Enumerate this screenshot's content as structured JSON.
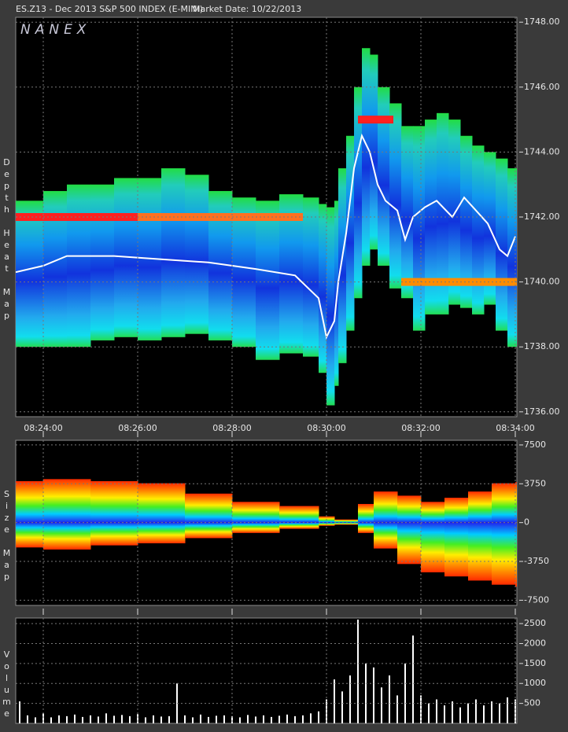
{
  "chart_data": [
    {
      "type": "depth",
      "title": "ES.Z13 - Dec 2013 S&P 500 INDEX (E-MINI)",
      "subtitle": "Market Date: 10/22/2013",
      "watermark": "NANEX",
      "ylabel": "Depth Heat Map",
      "xlim": [
        "08:23:25",
        "08:34:02"
      ],
      "xticks": [
        "08:24:00",
        "08:26:00",
        "08:28:00",
        "08:30:00",
        "08:32:00",
        "08:34:00"
      ],
      "ylim": [
        1735.85,
        1748.15
      ],
      "yticks": [
        {
          "value": 1736,
          "label": "1736.00"
        },
        {
          "value": 1738,
          "label": "1738.00"
        },
        {
          "value": 1740,
          "label": "1740.00"
        },
        {
          "value": 1742,
          "label": "1742.00"
        },
        {
          "value": 1744,
          "label": "1744.00"
        },
        {
          "value": 1746,
          "label": "1746.00"
        },
        {
          "value": 1748,
          "label": "1748.00"
        }
      ],
      "grid": true,
      "depth": {
        "x": [
          "08:23:25",
          "08:24:00",
          "08:24:30",
          "08:25:00",
          "08:25:30",
          "08:26:00",
          "08:26:30",
          "08:27:00",
          "08:27:30",
          "08:28:00",
          "08:28:30",
          "08:29:00",
          "08:29:30",
          "08:29:50",
          "08:30:00",
          "08:30:10",
          "08:30:15",
          "08:30:25",
          "08:30:35",
          "08:30:45",
          "08:30:55",
          "08:31:05",
          "08:31:20",
          "08:31:35",
          "08:31:50",
          "08:32:05",
          "08:32:20",
          "08:32:35",
          "08:32:50",
          "08:33:05",
          "08:33:20",
          "08:33:35",
          "08:33:50"
        ],
        "low": [
          1738,
          1738,
          1738,
          1738.2,
          1738.3,
          1738.2,
          1738.3,
          1738.4,
          1738.2,
          1738,
          1737.6,
          1737.8,
          1737.7,
          1737.2,
          1736.2,
          1736.8,
          1737.5,
          1738.5,
          1739.5,
          1740.5,
          1741,
          1740.5,
          1739.8,
          1739.5,
          1738.5,
          1739,
          1739,
          1739.3,
          1739.2,
          1739,
          1739.3,
          1738.5,
          1738
        ],
        "high": [
          1742.5,
          1742.8,
          1743,
          1743,
          1743.2,
          1743.2,
          1743.5,
          1743.3,
          1742.8,
          1742.6,
          1742.5,
          1742.7,
          1742.6,
          1742.4,
          1742.3,
          1742.5,
          1743.5,
          1744.5,
          1746,
          1747.2,
          1747,
          1746,
          1745.5,
          1744.8,
          1744.8,
          1745,
          1745.2,
          1745,
          1744.5,
          1744.2,
          1744,
          1743.8,
          1743.5
        ]
      },
      "levels": [
        {
          "price": 1742,
          "from": "08:23:25",
          "to": "08:26:00",
          "color": "#ff2020"
        },
        {
          "price": 1742,
          "from": "08:26:00",
          "to": "08:29:30",
          "color": "#ff7020"
        },
        {
          "price": 1745,
          "from": "08:30:40",
          "to": "08:31:25",
          "color": "#ff2020"
        },
        {
          "price": 1740,
          "from": "08:31:35",
          "to": "08:34:02",
          "color": "#ff8c00"
        }
      ],
      "price": {
        "color": "#ffffff",
        "x": [
          "08:23:25",
          "08:24:00",
          "08:24:30",
          "08:25:30",
          "08:26:30",
          "08:27:30",
          "08:28:30",
          "08:29:20",
          "08:29:50",
          "08:30:00",
          "08:30:10",
          "08:30:15",
          "08:30:25",
          "08:30:35",
          "08:30:45",
          "08:30:55",
          "08:31:05",
          "08:31:15",
          "08:31:30",
          "08:31:40",
          "08:31:50",
          "08:32:05",
          "08:32:20",
          "08:32:40",
          "08:32:55",
          "08:33:10",
          "08:33:25",
          "08:33:40",
          "08:33:50",
          "08:34:00"
        ],
        "values": [
          1740.3,
          1740.5,
          1740.8,
          1740.8,
          1740.7,
          1740.6,
          1740.4,
          1740.2,
          1739.5,
          1738.3,
          1738.8,
          1740,
          1741.5,
          1743.5,
          1744.5,
          1744,
          1743,
          1742.5,
          1742.2,
          1741.3,
          1742,
          1742.3,
          1742.5,
          1742,
          1742.6,
          1742.2,
          1741.8,
          1741,
          1740.8,
          1741.4
        ]
      }
    },
    {
      "type": "sizemap",
      "ylabel": "Size Map",
      "xlim": [
        "08:23:25",
        "08:34:02"
      ],
      "ylim": [
        -8000,
        7950
      ],
      "yticks": [
        -7500,
        -3750,
        0,
        3750,
        7500
      ],
      "grid": true,
      "x": [
        "08:23:25",
        "08:24:00",
        "08:25:00",
        "08:26:00",
        "08:27:00",
        "08:28:00",
        "08:29:00",
        "08:29:50",
        "08:30:10",
        "08:30:40",
        "08:31:00",
        "08:31:30",
        "08:32:00",
        "08:32:30",
        "08:33:00",
        "08:33:30",
        "08:34:00"
      ],
      "upper": [
        4000,
        4200,
        4000,
        3800,
        2800,
        2000,
        1600,
        600,
        300,
        1800,
        3000,
        2600,
        2000,
        2400,
        3000,
        3800,
        3900
      ],
      "lower": [
        -2400,
        -2600,
        -2200,
        -2000,
        -1500,
        -1000,
        -600,
        -300,
        -200,
        -1000,
        -2500,
        -4000,
        -4800,
        -5200,
        -5600,
        -6000,
        -6200
      ]
    },
    {
      "type": "volume",
      "ylabel": "Volume",
      "xlim": [
        "08:23:25",
        "08:34:02"
      ],
      "ylim": [
        0,
        2640
      ],
      "yticks": [
        500,
        1000,
        1500,
        2000,
        2500
      ],
      "grid": true,
      "color": "#ffffff",
      "x": [
        "08:23:30",
        "08:23:40",
        "08:23:50",
        "08:24:00",
        "08:24:10",
        "08:24:20",
        "08:24:30",
        "08:24:40",
        "08:24:50",
        "08:25:00",
        "08:25:10",
        "08:25:20",
        "08:25:30",
        "08:25:40",
        "08:25:50",
        "08:26:00",
        "08:26:10",
        "08:26:20",
        "08:26:30",
        "08:26:40",
        "08:26:50",
        "08:27:00",
        "08:27:10",
        "08:27:20",
        "08:27:30",
        "08:27:40",
        "08:27:50",
        "08:28:00",
        "08:28:10",
        "08:28:20",
        "08:28:30",
        "08:28:40",
        "08:28:50",
        "08:29:00",
        "08:29:10",
        "08:29:20",
        "08:29:30",
        "08:29:40",
        "08:29:50",
        "08:30:00",
        "08:30:10",
        "08:30:20",
        "08:30:30",
        "08:30:40",
        "08:30:50",
        "08:31:00",
        "08:31:10",
        "08:31:20",
        "08:31:30",
        "08:31:40",
        "08:31:50",
        "08:32:00",
        "08:32:10",
        "08:32:20",
        "08:32:30",
        "08:32:40",
        "08:32:50",
        "08:33:00",
        "08:33:10",
        "08:33:20",
        "08:33:30",
        "08:33:40",
        "08:33:50",
        "08:34:00"
      ],
      "values": [
        550,
        200,
        150,
        250,
        150,
        200,
        180,
        220,
        160,
        200,
        170,
        250,
        190,
        210,
        180,
        230,
        150,
        200,
        170,
        180,
        1000,
        200,
        150,
        220,
        160,
        190,
        200,
        180,
        150,
        210,
        170,
        200,
        160,
        190,
        220,
        180,
        200,
        250,
        300,
        600,
        1100,
        800,
        1200,
        2600,
        1500,
        1400,
        900,
        1200,
        700,
        1500,
        2200,
        700,
        500,
        600,
        450,
        550,
        400,
        500,
        600,
        450,
        550,
        500,
        650,
        600
      ]
    }
  ]
}
